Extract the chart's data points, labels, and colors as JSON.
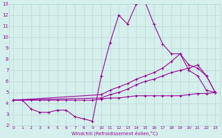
{
  "xlabel": "Windchill (Refroidissement éolien,°C)",
  "background_color": "#d5f0ec",
  "grid_color": "#b8d8d4",
  "line_color": "#990099",
  "xlim": [
    -0.5,
    23.5
  ],
  "ylim": [
    2,
    13
  ],
  "xticks": [
    0,
    1,
    2,
    3,
    4,
    5,
    6,
    7,
    8,
    9,
    10,
    11,
    12,
    13,
    14,
    15,
    16,
    17,
    18,
    19,
    20,
    21,
    22,
    23
  ],
  "yticks": [
    2,
    3,
    4,
    5,
    6,
    7,
    8,
    9,
    10,
    11,
    12,
    13
  ],
  "series": [
    {
      "x": [
        0,
        1,
        2,
        3,
        4,
        5,
        6,
        7,
        8,
        9,
        10,
        11,
        12,
        13,
        14,
        15,
        16,
        17,
        18,
        19,
        20,
        21,
        22,
        23
      ],
      "y": [
        4.3,
        4.3,
        3.5,
        3.2,
        3.2,
        3.4,
        3.4,
        2.8,
        2.6,
        2.4,
        6.5,
        9.5,
        12.0,
        11.2,
        13.0,
        13.2,
        11.2,
        9.4,
        8.5,
        8.5,
        7.0,
        6.5,
        5.2,
        5.0
      ]
    },
    {
      "x": [
        0,
        10,
        11,
        12,
        13,
        14,
        15,
        16,
        17,
        18,
        19,
        20,
        21,
        22,
        23
      ],
      "y": [
        4.3,
        4.8,
        5.2,
        5.5,
        5.8,
        6.2,
        6.5,
        6.8,
        7.2,
        7.8,
        8.5,
        7.5,
        7.2,
        6.5,
        5.0
      ]
    },
    {
      "x": [
        0,
        10,
        11,
        12,
        13,
        14,
        15,
        16,
        17,
        18,
        19,
        20,
        21,
        22,
        23
      ],
      "y": [
        4.3,
        4.5,
        4.8,
        5.0,
        5.3,
        5.7,
        6.0,
        6.2,
        6.5,
        6.8,
        7.0,
        7.2,
        7.5,
        6.5,
        5.0
      ]
    },
    {
      "x": [
        0,
        1,
        2,
        3,
        4,
        5,
        6,
        7,
        8,
        9,
        10,
        11,
        12,
        13,
        14,
        15,
        16,
        17,
        18,
        19,
        20,
        21,
        22,
        23
      ],
      "y": [
        4.3,
        4.3,
        4.3,
        4.3,
        4.3,
        4.3,
        4.3,
        4.3,
        4.3,
        4.3,
        4.4,
        4.5,
        4.5,
        4.6,
        4.7,
        4.7,
        4.7,
        4.7,
        4.7,
        4.7,
        4.8,
        4.9,
        4.9,
        5.0
      ]
    }
  ]
}
